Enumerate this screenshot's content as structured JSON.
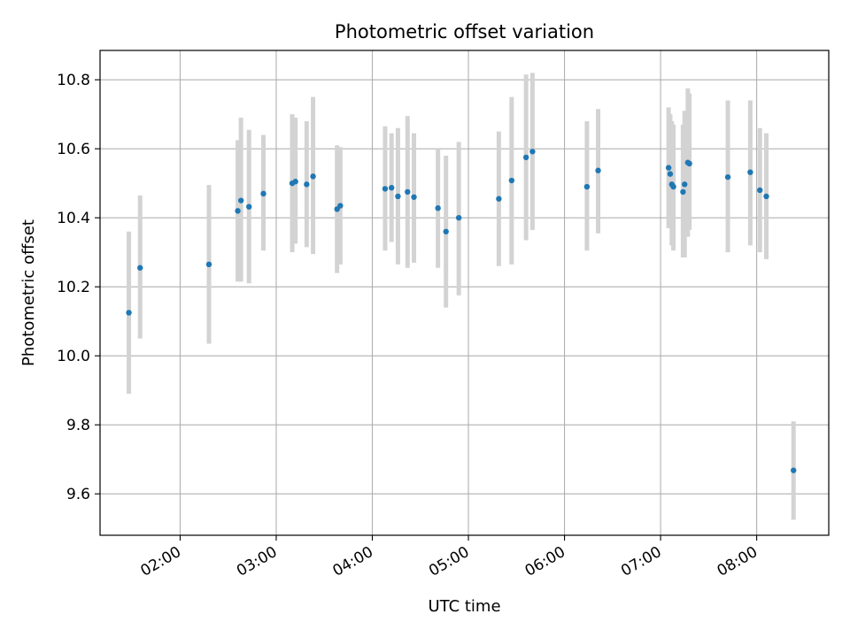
{
  "chart_data": {
    "type": "scatter",
    "title": "Photometric offset variation",
    "xlabel": "UTC time",
    "ylabel": "Photometric offset",
    "x_tick_labels": [
      "02:00",
      "03:00",
      "04:00",
      "05:00",
      "06:00",
      "07:00",
      "08:00"
    ],
    "y_tick_labels": [
      "9.6",
      "9.8",
      "10.0",
      "10.2",
      "10.4",
      "10.6",
      "10.8"
    ],
    "xlim": [
      "01:10",
      "08:45"
    ],
    "ylim": [
      9.48,
      10.885
    ],
    "grid": true,
    "colors": {
      "marker": "#1f77b4",
      "errorbar": "#d3d3d3",
      "grid": "#b0b0b0"
    },
    "series": [
      {
        "points": [
          {
            "x": "01:28",
            "y": 10.125,
            "ylow": 9.89,
            "yhigh": 10.36
          },
          {
            "x": "01:35",
            "y": 10.255,
            "ylow": 10.05,
            "yhigh": 10.465
          },
          {
            "x": "02:18",
            "y": 10.265,
            "ylow": 10.035,
            "yhigh": 10.495
          },
          {
            "x": "02:36",
            "y": 10.42,
            "ylow": 10.215,
            "yhigh": 10.625
          },
          {
            "x": "02:38",
            "y": 10.45,
            "ylow": 10.215,
            "yhigh": 10.69
          },
          {
            "x": "02:43",
            "y": 10.432,
            "ylow": 10.21,
            "yhigh": 10.655
          },
          {
            "x": "02:52",
            "y": 10.47,
            "ylow": 10.305,
            "yhigh": 10.64
          },
          {
            "x": "03:10",
            "y": 10.5,
            "ylow": 10.3,
            "yhigh": 10.7
          },
          {
            "x": "03:12",
            "y": 10.505,
            "ylow": 10.325,
            "yhigh": 10.69
          },
          {
            "x": "03:19",
            "y": 10.497,
            "ylow": 10.315,
            "yhigh": 10.68
          },
          {
            "x": "03:23",
            "y": 10.52,
            "ylow": 10.295,
            "yhigh": 10.75
          },
          {
            "x": "03:38",
            "y": 10.425,
            "ylow": 10.24,
            "yhigh": 10.61
          },
          {
            "x": "03:40",
            "y": 10.435,
            "ylow": 10.265,
            "yhigh": 10.605
          },
          {
            "x": "04:08",
            "y": 10.484,
            "ylow": 10.305,
            "yhigh": 10.665
          },
          {
            "x": "04:12",
            "y": 10.487,
            "ylow": 10.33,
            "yhigh": 10.645
          },
          {
            "x": "04:16",
            "y": 10.462,
            "ylow": 10.265,
            "yhigh": 10.66
          },
          {
            "x": "04:22",
            "y": 10.475,
            "ylow": 10.255,
            "yhigh": 10.695
          },
          {
            "x": "04:26",
            "y": 10.46,
            "ylow": 10.27,
            "yhigh": 10.645
          },
          {
            "x": "04:41",
            "y": 10.428,
            "ylow": 10.255,
            "yhigh": 10.6
          },
          {
            "x": "04:46",
            "y": 10.36,
            "ylow": 10.14,
            "yhigh": 10.58
          },
          {
            "x": "04:54",
            "y": 10.4,
            "ylow": 10.175,
            "yhigh": 10.62
          },
          {
            "x": "05:19",
            "y": 10.455,
            "ylow": 10.26,
            "yhigh": 10.65
          },
          {
            "x": "05:27",
            "y": 10.508,
            "ylow": 10.265,
            "yhigh": 10.75
          },
          {
            "x": "05:36",
            "y": 10.575,
            "ylow": 10.335,
            "yhigh": 10.815
          },
          {
            "x": "05:40",
            "y": 10.592,
            "ylow": 10.365,
            "yhigh": 10.82
          },
          {
            "x": "06:14",
            "y": 10.49,
            "ylow": 10.305,
            "yhigh": 10.68
          },
          {
            "x": "06:21",
            "y": 10.537,
            "ylow": 10.355,
            "yhigh": 10.715
          },
          {
            "x": "07:05",
            "y": 10.545,
            "ylow": 10.37,
            "yhigh": 10.72
          },
          {
            "x": "07:06",
            "y": 10.527,
            "ylow": 10.38,
            "yhigh": 10.7
          },
          {
            "x": "07:07",
            "y": 10.497,
            "ylow": 10.32,
            "yhigh": 10.68
          },
          {
            "x": "07:08",
            "y": 10.49,
            "ylow": 10.305,
            "yhigh": 10.67
          },
          {
            "x": "07:14",
            "y": 10.475,
            "ylow": 10.285,
            "yhigh": 10.67
          },
          {
            "x": "07:15",
            "y": 10.497,
            "ylow": 10.285,
            "yhigh": 10.71
          },
          {
            "x": "07:17",
            "y": 10.56,
            "ylow": 10.345,
            "yhigh": 10.775
          },
          {
            "x": "07:18",
            "y": 10.557,
            "ylow": 10.365,
            "yhigh": 10.76
          },
          {
            "x": "07:42",
            "y": 10.518,
            "ylow": 10.3,
            "yhigh": 10.74
          },
          {
            "x": "07:56",
            "y": 10.532,
            "ylow": 10.32,
            "yhigh": 10.74
          },
          {
            "x": "08:02",
            "y": 10.48,
            "ylow": 10.3,
            "yhigh": 10.66
          },
          {
            "x": "08:06",
            "y": 10.462,
            "ylow": 10.28,
            "yhigh": 10.645
          },
          {
            "x": "08:23",
            "y": 9.668,
            "ylow": 9.525,
            "yhigh": 9.81
          }
        ]
      }
    ]
  }
}
